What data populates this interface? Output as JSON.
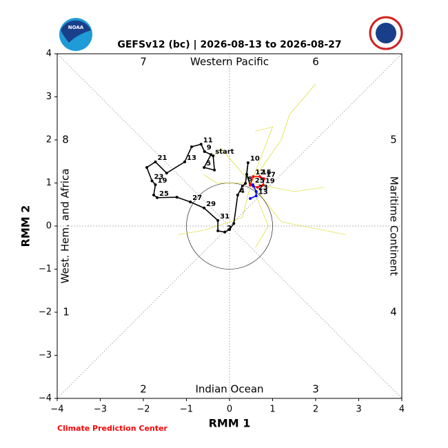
{
  "logo_text": "NOAA",
  "chart_data": {
    "type": "line",
    "title": "GEFSv12 (bc) | 2026-08-13 to 2026-08-27",
    "x_label": "RMM 1",
    "y_label": "RMM 2",
    "phase_labels": [
      "1",
      "2",
      "3",
      "4",
      "5",
      "6",
      "7",
      "8"
    ],
    "region_labels": [
      "Western Pacific",
      "Indian Ocean",
      "West. Hem. and Africa",
      "Maritime Continent"
    ],
    "credit": "Climate Prediction Center",
    "xlim": [
      -4,
      4
    ],
    "ylim": [
      -4,
      4
    ],
    "xticks": [
      {
        "value": -4,
        "label": "−4"
      },
      {
        "value": -3,
        "label": "−3"
      },
      {
        "value": -2,
        "label": "−2"
      },
      {
        "value": -1,
        "label": "−1"
      },
      0,
      1,
      2,
      3,
      4
    ],
    "yticks": [
      {
        "value": -4,
        "label": "−4"
      },
      {
        "value": -3,
        "label": "−3"
      },
      {
        "value": -2,
        "label": "−2"
      },
      {
        "value": -1,
        "label": "−1"
      },
      0,
      1,
      2,
      3,
      4
    ],
    "unit_circle": 1,
    "series": [
      {
        "color": "#d4d400",
        "x": [
          0.5,
          1.2,
          1.4,
          2.0
        ],
        "y": [
          1.0,
          2.0,
          2.6,
          3.3
        ]
      },
      {
        "color": "#d4d400",
        "x": [
          0.5,
          1.5,
          2.2
        ],
        "y": [
          1.0,
          0.8,
          0.9
        ]
      },
      {
        "color": "#d4d400",
        "x": [
          0.5,
          0.3,
          -0.6,
          -1.2
        ],
        "y": [
          1.0,
          0.2,
          -0.1,
          -0.2
        ]
      },
      {
        "color": "#d4d400",
        "x": [
          0.5,
          1.2,
          2.7
        ],
        "y": [
          1.0,
          0.1,
          -0.2
        ]
      },
      {
        "color": "#d4d400",
        "x": [
          0.5,
          -0.2,
          -0.4
        ],
        "y": [
          1.0,
          1.8,
          1.6
        ]
      },
      {
        "color": "#d4d400",
        "x": [
          0.5,
          -0.3,
          -0.6
        ],
        "y": [
          1.0,
          1.0,
          1.2
        ]
      },
      {
        "color": "#d4d400",
        "x": [
          0.5,
          1.0,
          0.6
        ],
        "y": [
          1.0,
          2.3,
          2.2
        ]
      },
      {
        "color": "#d4d400",
        "x": [
          0.5,
          0.9,
          0.6
        ],
        "y": [
          1.0,
          0.0,
          -0.5
        ]
      },
      {
        "color": "#000000",
        "x": [
          -0.38,
          -0.35,
          -0.59,
          -0.43,
          -0.58,
          -0.66,
          -0.88,
          -1.04,
          -1.46,
          -1.72,
          -1.92,
          -1.8,
          -1.72,
          -1.76,
          -1.68,
          -1.22,
          -0.91,
          -0.59,
          -0.27,
          -0.27,
          -0.11,
          0.0,
          0.1,
          0.19,
          0.3,
          0.37,
          0.43,
          0.4,
          0.48
        ],
        "y": [
          1.63,
          1.3,
          1.36,
          1.66,
          1.73,
          1.9,
          1.84,
          1.49,
          1.23,
          1.49,
          1.36,
          1.05,
          0.96,
          0.72,
          0.66,
          0.67,
          0.56,
          0.42,
          0.13,
          -0.11,
          -0.14,
          -0.08,
          0.06,
          0.72,
          0.93,
          0.99,
          1.47,
          1.2,
          0.95
        ],
        "point_labels": [
          "start",
          null,
          "5",
          null,
          "9",
          "11",
          null,
          "13",
          null,
          "21",
          null,
          "23",
          "19",
          null,
          "25",
          null,
          "27",
          "29",
          "31",
          null,
          "2",
          null,
          null,
          "4",
          null,
          "8",
          "10",
          null,
          null
        ]
      },
      {
        "color": "#ff0000",
        "x": [
          0.48,
          0.55,
          0.7,
          0.8,
          0.78,
          0.65,
          0.55
        ],
        "y": [
          0.95,
          1.15,
          1.15,
          1.1,
          0.95,
          0.9,
          0.93
        ],
        "point_labels": [
          null,
          "12",
          "15",
          "17",
          "19",
          null,
          null
        ]
      },
      {
        "color": "#0000ff",
        "x": [
          0.55,
          0.54,
          0.62,
          0.62,
          0.48
        ],
        "y": [
          0.93,
          0.96,
          0.8,
          0.7,
          0.64
        ],
        "point_labels": [
          null,
          "25",
          "23",
          "13",
          null
        ]
      }
    ]
  }
}
